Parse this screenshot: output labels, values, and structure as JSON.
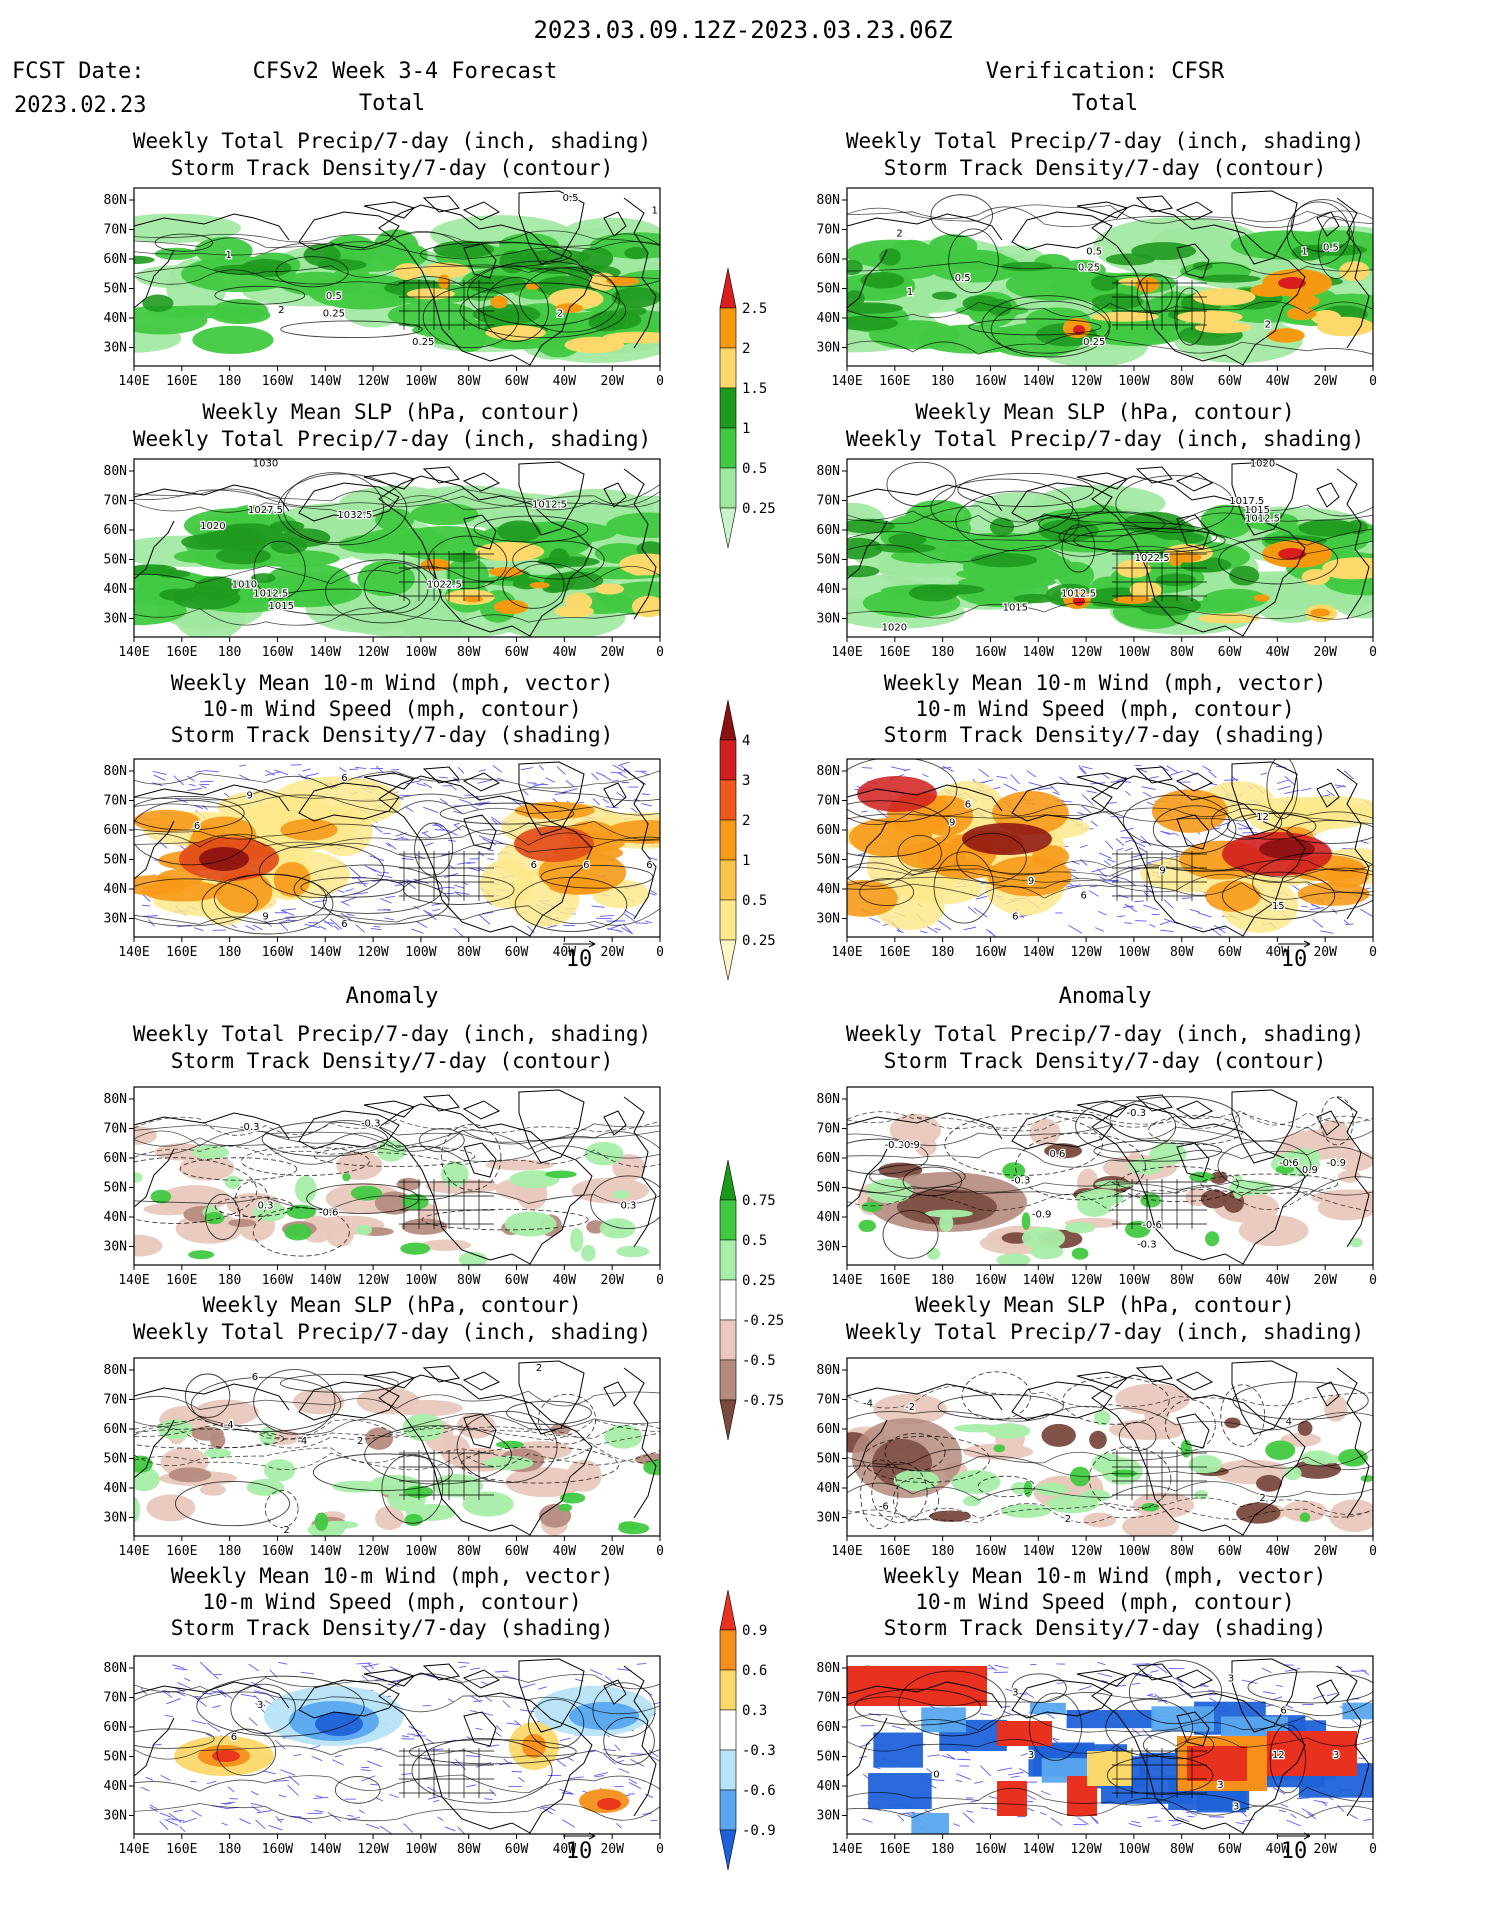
{
  "header": {
    "date_range": "2023.03.09.12Z-2023.03.23.06Z",
    "fcst_label": "FCST Date:",
    "fcst_date": "2023.02.23",
    "fcst_color": "#ff2020",
    "left_title": "CFSv2 Week 3-4 Forecast",
    "right_title": "Verification: CFSR"
  },
  "section_labels": {
    "total": "Total",
    "anomaly": "Anomaly",
    "color": "#2020ff"
  },
  "panel_titles": {
    "precip_storm": [
      "Weekly Total Precip/7-day (inch, shading)",
      "Storm Track Density/7-day (contour)"
    ],
    "slp_precip": [
      "Weekly Mean SLP (hPa, contour)",
      "Weekly Total Precip/7-day (inch, shading)"
    ],
    "wind_storm": [
      "Weekly Mean 10-m Wind (mph, vector)",
      "10-m Wind Speed (mph, contour)",
      "Storm Track Density/7-day (shading)"
    ]
  },
  "axes": {
    "lon_labels": [
      "140E",
      "160E",
      "180",
      "160W",
      "140W",
      "120W",
      "100W",
      "80W",
      "60W",
      "40W",
      "20W",
      "0"
    ],
    "lat_labels": [
      "80N",
      "70N",
      "60N",
      "50N",
      "40N",
      "30N"
    ]
  },
  "vector_ref": "10",
  "colorbars": {
    "total_precip": {
      "labels": [
        "2.5",
        "2",
        "1.5",
        "1",
        "0.5",
        "0.25"
      ],
      "colors": [
        "#d81e1e",
        "#f59a10",
        "#fcd96a",
        "#1f9a1f",
        "#41c941",
        "#9ee89e",
        "#c9f5c9"
      ]
    },
    "total_storm": {
      "labels": [
        "4",
        "3",
        "2",
        "1",
        "0.5",
        "0.25"
      ],
      "colors": [
        "#8b1010",
        "#d11f1f",
        "#f0581c",
        "#f79a1a",
        "#fbc44a",
        "#fde98c",
        "#fff6c8"
      ]
    },
    "anom_precip": {
      "labels": [
        "0.75",
        "0.5",
        "0.25",
        "-0.25",
        "-0.5",
        "-0.75"
      ],
      "colors": [
        "#1a9a1a",
        "#41c941",
        "#a8eea8",
        "#ffffff",
        "#e9c8bd",
        "#b58b7e",
        "#7a4a3e"
      ]
    },
    "anom_storm": {
      "labels": [
        "0.9",
        "0.6",
        "0.3",
        "-0.3",
        "-0.6",
        "-0.9"
      ],
      "colors": [
        "#e8311e",
        "#f6901a",
        "#fbd86a",
        "#ffffff",
        "#b7e3f7",
        "#59a6ef",
        "#1f62d8"
      ]
    }
  },
  "contour_labels": {
    "L1": [
      "0.5",
      "1",
      "1",
      "0.5",
      "0.25",
      "2",
      "2",
      "0.25"
    ],
    "R1": [
      "2",
      "0.5",
      "1",
      "0.5",
      "0.25",
      "1",
      "0.5",
      "2",
      "0.25"
    ],
    "L2": [
      "1030",
      "1027.5",
      "1020",
      "1032.5",
      "1012.5",
      "1010",
      "1012.5",
      "1015",
      "1022.5"
    ],
    "R2": [
      "1020",
      "1017.5",
      "1015",
      "1012.5",
      "1022.5",
      "1012.5",
      "1015",
      "1020"
    ],
    "L3": [
      "6",
      "9",
      "6",
      "6",
      "6",
      "6",
      "9",
      "6"
    ],
    "R3": [
      "6",
      "9",
      "9",
      "6",
      "6",
      "9",
      "12",
      "15"
    ],
    "L4": [
      "-0.3",
      "-0.3",
      "0.3",
      "-0.6",
      "0.3"
    ],
    "R4": [
      "-0.3",
      "-0.9",
      "-0.3",
      "0.6",
      "-0.3",
      "-0.9",
      "-0.6",
      "-0.3",
      "-0.9",
      "-0.6",
      "0.9"
    ],
    "L5": [
      "6",
      "2",
      "-4",
      "-4",
      "2",
      "2"
    ],
    "R5": [
      "-4",
      "-2",
      "4",
      "2",
      "2",
      "-6"
    ],
    "L6": [
      "3",
      "6"
    ],
    "R6": [
      "3",
      "3",
      "3",
      "0",
      "3",
      "6",
      "12",
      "3",
      "3"
    ]
  },
  "colors": {
    "green_dark": "#1f9a1f",
    "green_mid": "#41c941",
    "green_light": "#9ee89e",
    "yellow": "#fcd96a",
    "orange": "#f59a10",
    "red": "#d81e1e",
    "storm_light": "#fde98c",
    "storm_mid": "#f79a1a",
    "storm_dark": "#8b1010",
    "brown_light": "#e9c8bd",
    "brown_dark": "#7a4a3e",
    "blue": "#1f62d8",
    "blue_light": "#59a6ef",
    "vector": "#5a5aff"
  }
}
